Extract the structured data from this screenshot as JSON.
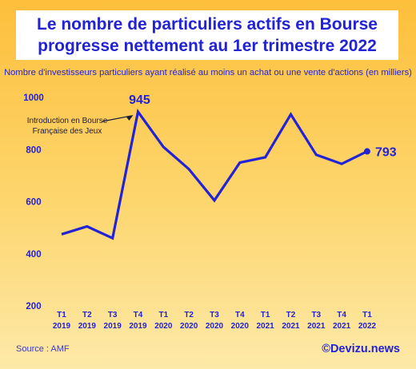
{
  "title_line1": "Le nombre de particuliers actifs en Bourse",
  "title_line2": "progresse nettement au 1er trimestre 2022",
  "subtitle": "Nombre d'investisseurs particuliers ayant réalisé au moins un achat ou une vente d'actions (en milliers)",
  "source": "Source : AMF",
  "brand": "©Devizu.news",
  "colors": {
    "line": "#2222d6",
    "title": "#2222d6",
    "background": "#fdc84d"
  },
  "chart_data": {
    "type": "line",
    "categories": [
      "T1 2019",
      "T2 2019",
      "T3 2019",
      "T4 2019",
      "T1 2020",
      "T2 2020",
      "T3 2020",
      "T4 2020",
      "T1 2021",
      "T2 2021",
      "T3 2021",
      "T4 2021",
      "T1 2022"
    ],
    "cat_lines": [
      [
        "T1",
        "2019"
      ],
      [
        "T2",
        "2019"
      ],
      [
        "T3",
        "2019"
      ],
      [
        "T4",
        "2019"
      ],
      [
        "T1",
        "2020"
      ],
      [
        "T2",
        "2020"
      ],
      [
        "T3",
        "2020"
      ],
      [
        "T4",
        "2020"
      ],
      [
        "T1",
        "2021"
      ],
      [
        "T2",
        "2021"
      ],
      [
        "T3",
        "2021"
      ],
      [
        "T4",
        "2021"
      ],
      [
        "T1",
        "2022"
      ]
    ],
    "values": [
      475,
      505,
      460,
      945,
      810,
      725,
      605,
      750,
      770,
      935,
      780,
      745,
      793
    ],
    "ylim": [
      200,
      1000
    ],
    "yticks": [
      200,
      400,
      600,
      800,
      1000
    ],
    "grid": false,
    "annotations": [
      {
        "text_line1": "Introduction en Bourse",
        "text_line2": "Française des Jeux",
        "index": 3
      }
    ],
    "data_labels": [
      {
        "index": 3,
        "text": "945"
      },
      {
        "index": 12,
        "text": "793"
      }
    ]
  }
}
